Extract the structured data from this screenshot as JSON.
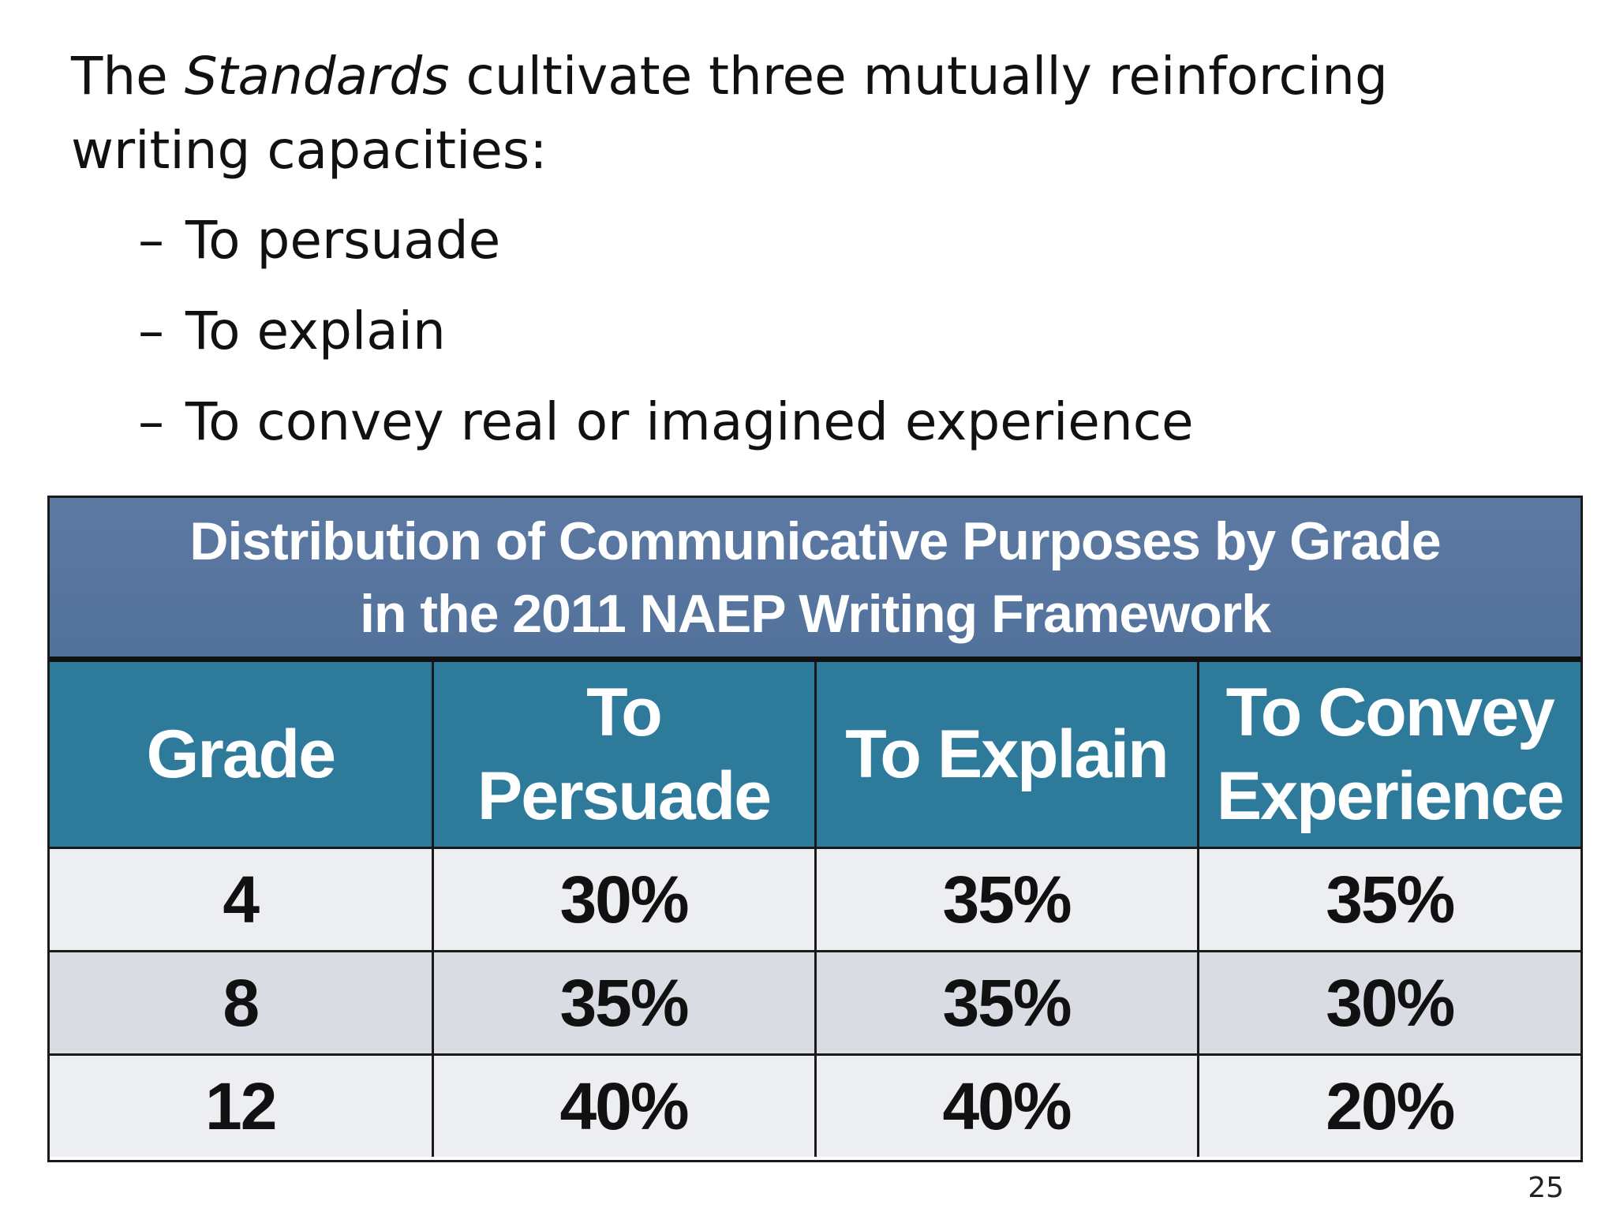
{
  "intro": {
    "prefix": "The ",
    "emphasis": "Standards",
    "suffix": " cultivate three mutually reinforcing writing capacities:"
  },
  "bullets": [
    {
      "dash": "–",
      "text": "To persuade"
    },
    {
      "dash": "–",
      "text": "To explain"
    },
    {
      "dash": "–",
      "text": "To convey real or imagined experience"
    }
  ],
  "table": {
    "title_line1": "Distribution of Communicative Purposes by Grade",
    "title_line2": "in the 2011 NAEP Writing Framework",
    "headers": {
      "grade": "Grade",
      "persuade": "To Persuade",
      "explain": "To Explain",
      "convey_line1": "To Convey",
      "convey_line2": "Experience"
    },
    "rows": [
      {
        "grade": "4",
        "persuade": "30%",
        "explain": "35%",
        "convey": "35%"
      },
      {
        "grade": "8",
        "persuade": "35%",
        "explain": "35%",
        "convey": "30%"
      },
      {
        "grade": "12",
        "persuade": "40%",
        "explain": "40%",
        "convey": "20%"
      }
    ]
  },
  "page_number": "25",
  "colors": {
    "title_band": "#5675a0",
    "header_band": "#2d7a9b",
    "row_light": "#eceef2",
    "row_dark": "#d9dde3",
    "border": "#1a1a1a"
  }
}
